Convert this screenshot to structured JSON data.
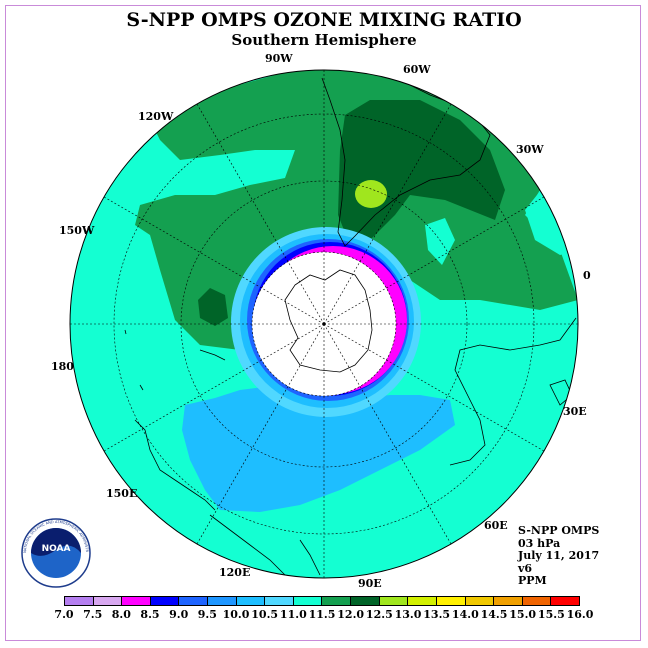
{
  "title": "S-NPP OMPS OZONE MIXING RATIO",
  "subtitle": "Southern Hemisphere",
  "longitude_labels": [
    "90W",
    "60W",
    "120W",
    "30W",
    "150W",
    "0",
    "180",
    "30E",
    "150E",
    "60E",
    "120E",
    "90E"
  ],
  "info": {
    "instrument": "S-NPP OMPS",
    "level": "03 hPa",
    "date": "July 11, 2017",
    "version": "v6",
    "units": "PPM"
  },
  "logo": {
    "text": "NOAA",
    "ring_text": "NATIONAL OCEANIC AND ATMOSPHERIC ADMINISTRATION"
  },
  "colorbar": {
    "ticks": [
      "7.0",
      "7.5",
      "8.0",
      "8.5",
      "9.0",
      "9.5",
      "10.0",
      "10.5",
      "11.0",
      "11.5",
      "12.0",
      "12.5",
      "13.0",
      "13.5",
      "14.0",
      "14.5",
      "15.0",
      "15.5",
      "16.0"
    ],
    "colors": [
      "#b57ff0",
      "#d8a8f0",
      "#ff00ff",
      "#0000ff",
      "#1e64ff",
      "#1e96ff",
      "#1ebeff",
      "#50d8ff",
      "#14ffd2",
      "#14a050",
      "#006428",
      "#a0e61e",
      "#d2f000",
      "#fff000",
      "#f0c800",
      "#f0a000",
      "#f06400",
      "#ff0000",
      "#a0522d"
    ]
  },
  "map_colors": {
    "dark_green": "#006428",
    "mid_green": "#14a050",
    "aqua": "#14ffd2",
    "light_blue": "#50d8ff",
    "sky_blue": "#1ebeff",
    "blue": "#0000ff",
    "magenta": "#ff00ff",
    "lime": "#a0e61e"
  }
}
